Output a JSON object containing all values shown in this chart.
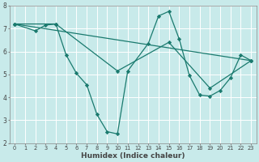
{
  "title": "",
  "xlabel": "Humidex (Indice chaleur)",
  "bg_color": "#c8eaea",
  "grid_color": "#ffffff",
  "line_color": "#1a7a6e",
  "marker": "D",
  "markersize": 2.2,
  "linewidth": 0.9,
  "series": [
    {
      "x": [
        0,
        2,
        3,
        4,
        5,
        6,
        7,
        8,
        9,
        10,
        11,
        13,
        14,
        15,
        16,
        17,
        18,
        19,
        20,
        21,
        22,
        23
      ],
      "y": [
        7.2,
        6.9,
        7.15,
        7.2,
        5.85,
        5.05,
        4.55,
        3.25,
        2.5,
        2.4,
        5.15,
        6.35,
        7.55,
        7.75,
        6.55,
        4.95,
        4.1,
        4.05,
        4.3,
        4.85,
        5.85,
        5.6
      ]
    },
    {
      "x": [
        0,
        23
      ],
      "y": [
        7.2,
        5.6
      ]
    },
    {
      "x": [
        0,
        4,
        10,
        15,
        19,
        23
      ],
      "y": [
        7.2,
        7.2,
        5.15,
        6.4,
        4.4,
        5.6
      ]
    }
  ],
  "xlim": [
    -0.5,
    23.5
  ],
  "ylim": [
    2,
    8
  ],
  "xticks": [
    0,
    1,
    2,
    3,
    4,
    5,
    6,
    7,
    8,
    9,
    10,
    11,
    12,
    13,
    14,
    15,
    16,
    17,
    18,
    19,
    20,
    21,
    22,
    23
  ],
  "yticks": [
    2,
    3,
    4,
    5,
    6,
    7,
    8
  ],
  "tick_fontsize_x": 4.8,
  "tick_fontsize_y": 5.5,
  "xlabel_fontsize": 6.5,
  "tick_color": "#444444",
  "spine_color": "#888888"
}
